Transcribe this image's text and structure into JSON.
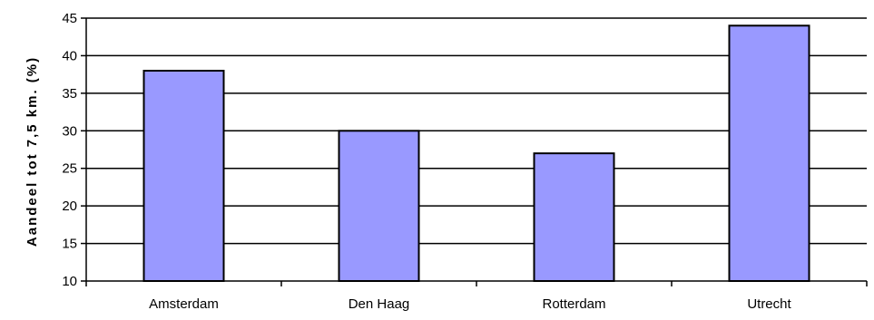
{
  "chart_data": {
    "type": "bar",
    "categories": [
      "Amsterdam",
      "Den Haag",
      "Rotterdam",
      "Utrecht"
    ],
    "values": [
      38,
      30,
      27,
      44
    ],
    "title": "",
    "xlabel": "",
    "ylabel": "Aandeel tot 7,5 km. (%)",
    "ylim": [
      10,
      45
    ],
    "yticks": [
      10,
      15,
      20,
      25,
      30,
      35,
      40,
      45
    ],
    "grid": true,
    "legend": "none",
    "colors": {
      "bar_fill": "#9999ff",
      "bar_stroke": "#000000",
      "gridline": "#000000",
      "axis": "#000000",
      "background": "#ffffff"
    }
  }
}
